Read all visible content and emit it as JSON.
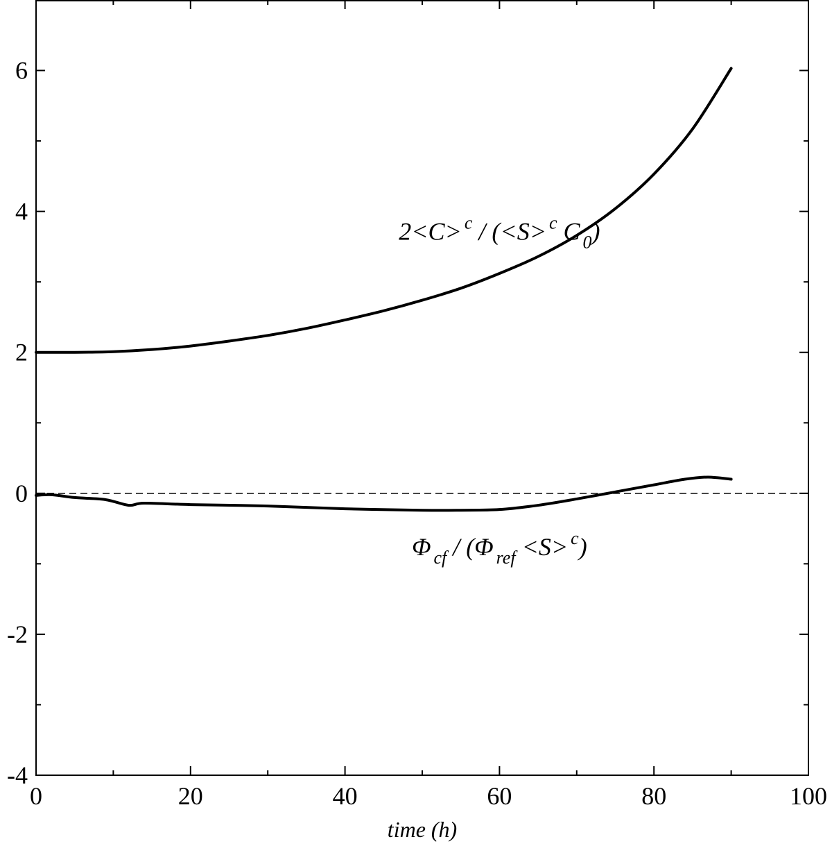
{
  "chart_data": {
    "type": "line",
    "title": "",
    "xlabel": "time (h)",
    "ylabel": "",
    "xlim": [
      0,
      100
    ],
    "ylim": [
      -4,
      7
    ],
    "x_ticks": [
      0,
      20,
      40,
      60,
      80,
      100
    ],
    "x_tick_labels": [
      "0",
      "20",
      "40",
      "60",
      "80",
      "100"
    ],
    "y_ticks": [
      -4,
      -2,
      0,
      2,
      4,
      6
    ],
    "y_tick_labels": [
      "-4",
      "-2",
      "0",
      "2",
      "4",
      "6"
    ],
    "grid": false,
    "legend": "none",
    "series": [
      {
        "x": [
          0,
          5,
          10,
          15,
          20,
          25,
          30,
          35,
          40,
          45,
          50,
          55,
          60,
          65,
          70,
          75,
          80,
          85,
          90
        ],
        "values": [
          2.0,
          2.0,
          2.01,
          2.04,
          2.09,
          2.16,
          2.24,
          2.34,
          2.46,
          2.59,
          2.74,
          2.91,
          3.12,
          3.36,
          3.66,
          4.04,
          4.53,
          5.17,
          6.03
        ],
        "style": "solid"
      },
      {
        "x": [
          0,
          2,
          5,
          9,
          12,
          14,
          20,
          30,
          40,
          50,
          55,
          60,
          65,
          70,
          75,
          80,
          84,
          87,
          90
        ],
        "values": [
          -0.03,
          -0.02,
          -0.06,
          -0.09,
          -0.17,
          -0.14,
          -0.16,
          -0.18,
          -0.22,
          -0.24,
          -0.24,
          -0.23,
          -0.17,
          -0.08,
          0.02,
          0.12,
          0.2,
          0.23,
          0.2
        ],
        "style": "solid"
      },
      {
        "x": [
          0,
          100
        ],
        "values": [
          0,
          0
        ],
        "style": "dashed"
      }
    ],
    "annotations": [
      {
        "x": 60,
        "y": 3.6,
        "parts": [
          "2<C>",
          "c",
          " / (<S>",
          "c",
          " C",
          "0",
          ")"
        ]
      },
      {
        "x": 60,
        "y": -0.88,
        "parts": [
          "Φ",
          "cf",
          " / (Φ",
          "ref",
          " <S>",
          "c",
          ")"
        ]
      }
    ]
  }
}
